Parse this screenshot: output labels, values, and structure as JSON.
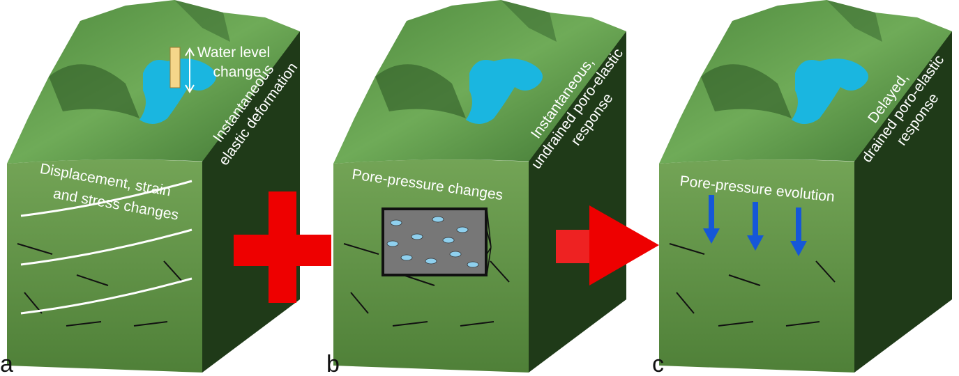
{
  "panels": [
    {
      "label": "a",
      "front_text": [
        "Displacement, strain",
        "and stress changes"
      ],
      "side_text": [
        "Instantaneous",
        "elastic deformation"
      ],
      "water_level": [
        "Water level",
        "change"
      ]
    },
    {
      "label": "b",
      "front_text": [
        "Pore-pressure changes"
      ],
      "side_text": [
        "Instantaneous,",
        "undrained poro-elastic",
        "response"
      ]
    },
    {
      "label": "c",
      "front_text": [
        "Pore-pressure evolution"
      ],
      "side_text": [
        "Delayed,",
        "drained poro-elastic",
        "response"
      ]
    }
  ]
}
